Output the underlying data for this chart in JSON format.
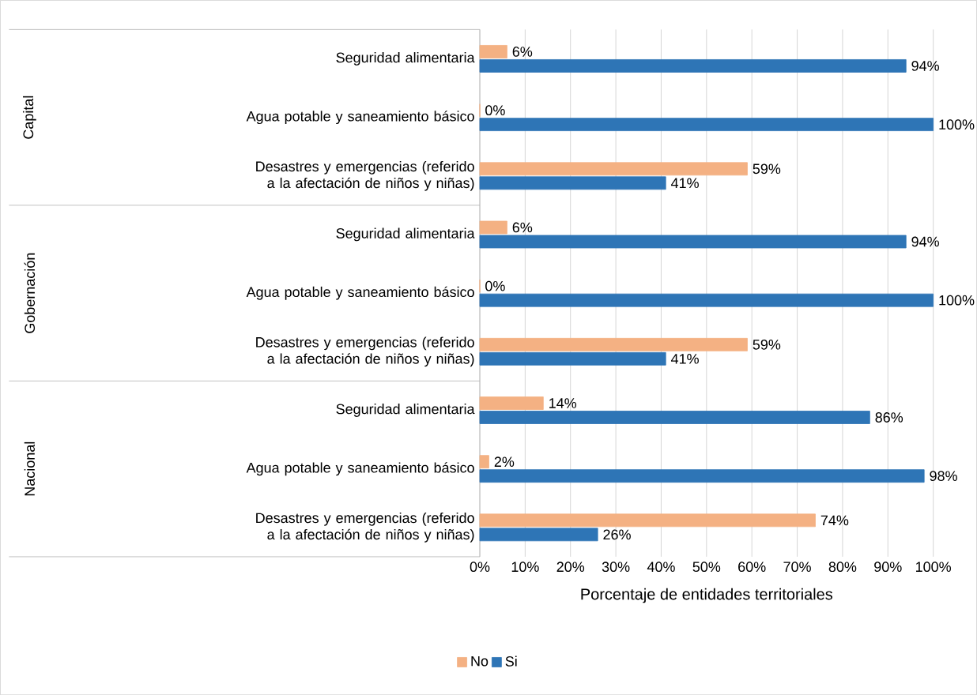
{
  "chart_data": {
    "type": "bar",
    "orientation": "horizontal",
    "xlabel": "Porcentaje de entidades territoriales",
    "categories": [
      "Seguridad alimentaria",
      "Agua potable y saneamiento básico",
      "Desastres y emergencias (referido a la afectación de niños y niñas)",
      "Seguridad alimentaria",
      "Agua potable y saneamiento básico",
      "Desastres y emergencias (referido a la afectación de niños y niñas)",
      "Seguridad alimentaria",
      "Agua potable y saneamiento básico",
      "Desastres y emergencias (referido a la afectación de niños y niñas)"
    ],
    "series": [
      {
        "name": "No",
        "color": "#f4b183",
        "values": [
          6,
          0,
          59,
          6,
          0,
          59,
          14,
          2,
          74
        ],
        "value_labels": [
          "6%",
          "0%",
          "59%",
          "6%",
          "0%",
          "59%",
          "14%",
          "2%",
          "74%"
        ]
      },
      {
        "name": "Si",
        "color": "#2e75b6",
        "values": [
          94,
          100,
          41,
          94,
          100,
          41,
          86,
          98,
          26
        ],
        "value_labels": [
          "94%",
          "100%",
          "41%",
          "94%",
          "100%",
          "41%",
          "86%",
          "98%",
          "26%"
        ]
      }
    ],
    "xlim": [
      0,
      100
    ],
    "xticks": [
      {
        "value": 0,
        "label": "0%"
      },
      {
        "value": 10,
        "label": "10%"
      },
      {
        "value": 20,
        "label": "20%"
      },
      {
        "value": 30,
        "label": "30%"
      },
      {
        "value": 40,
        "label": "40%"
      },
      {
        "value": 50,
        "label": "50%"
      },
      {
        "value": 60,
        "label": "60%"
      },
      {
        "value": 70,
        "label": "70%"
      },
      {
        "value": 80,
        "label": "80%"
      },
      {
        "value": 90,
        "label": "90%"
      },
      {
        "value": 100,
        "label": "100%"
      }
    ],
    "grid": "x",
    "legend": "bottom",
    "annotations": [
      "Capital",
      "Gobernación",
      "Nacional"
    ]
  }
}
